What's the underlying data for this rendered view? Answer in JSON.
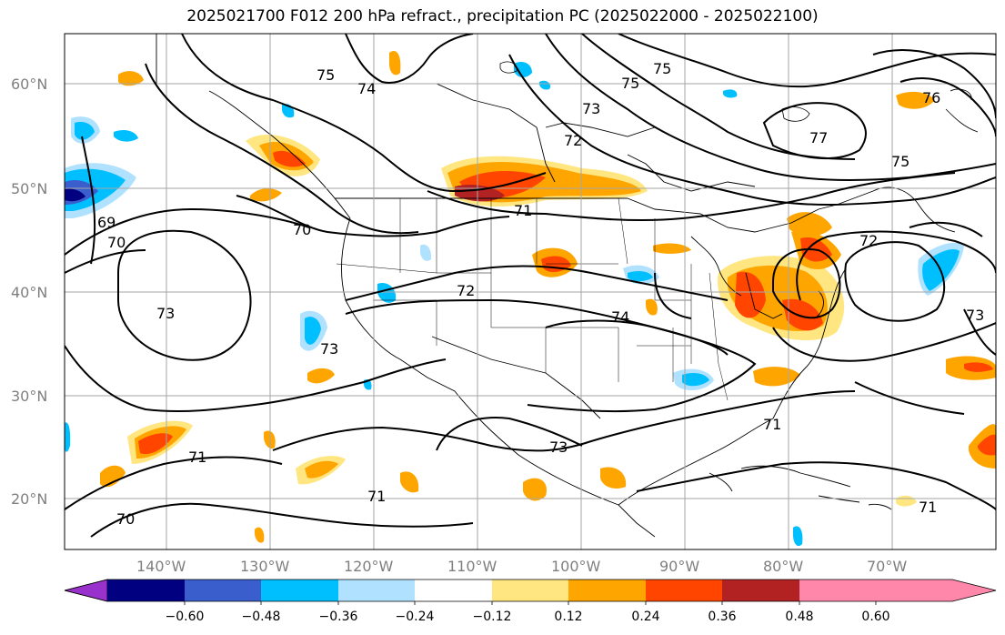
{
  "title": "2025021700 F012 200 hPa refract., precipitation PC (2025022000 - 2025022100)",
  "lat_labels": [
    "60°N",
    "50°N",
    "40°N",
    "30°N",
    "20°N"
  ],
  "lon_labels": [
    "140°W",
    "130°W",
    "120°W",
    "110°W",
    "100°W",
    "90°W",
    "80°W",
    "70°W"
  ],
  "contour_labels": [
    "75",
    "74",
    "75",
    "73",
    "72",
    "71",
    "75",
    "76",
    "77",
    "75",
    "69",
    "70",
    "70",
    "71",
    "72",
    "74",
    "73",
    "73",
    "71",
    "73",
    "71",
    "70",
    "71",
    "72",
    "73"
  ],
  "colorbar": {
    "ticks": [
      "−0.60",
      "−0.48",
      "−0.36",
      "−0.24",
      "−0.12",
      "0.12",
      "0.24",
      "0.36",
      "0.48",
      "0.60"
    ],
    "colors": [
      "#9932cc",
      "#000080",
      "#3a5fcd",
      "#00bfff",
      "#b0e2ff",
      "#ffffff",
      "#ffe680",
      "#ffa500",
      "#ff4500",
      "#b22222",
      "#ff88aa"
    ]
  }
}
